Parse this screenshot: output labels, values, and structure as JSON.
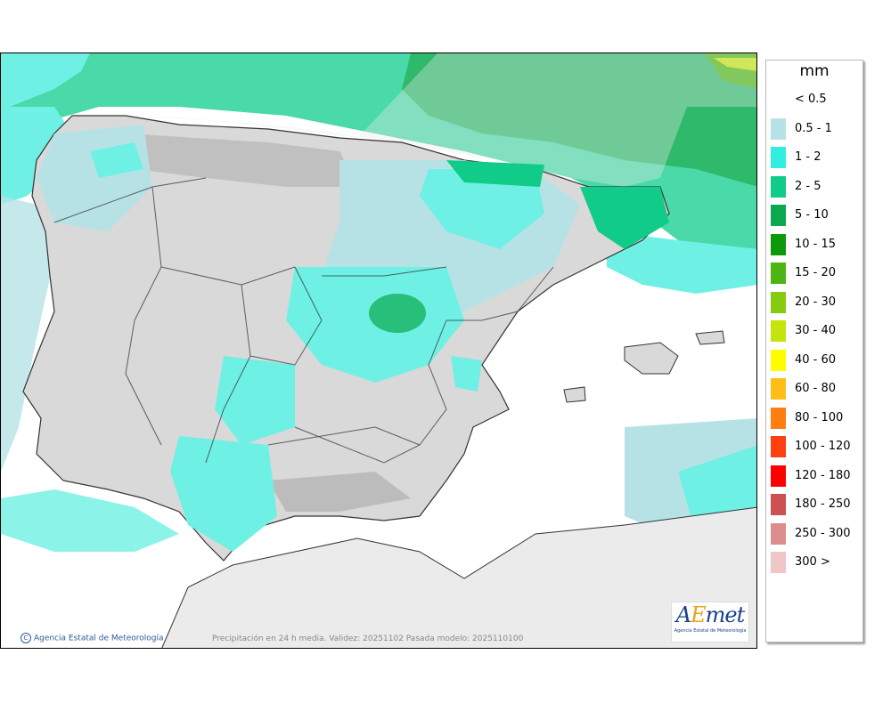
{
  "legend": {
    "title": "mm",
    "items": [
      {
        "label": "< 0.5",
        "color": "#ffffff"
      },
      {
        "label": "0.5 - 1",
        "color": "#b7e2e5"
      },
      {
        "label": "1 - 2",
        "color": "#30eee0"
      },
      {
        "label": "2 - 5",
        "color": "#10cc88"
      },
      {
        "label": "5 - 10",
        "color": "#0aa94e"
      },
      {
        "label": "10 - 15",
        "color": "#0a9a0a"
      },
      {
        "label": "15 - 20",
        "color": "#4cb511"
      },
      {
        "label": "20 - 30",
        "color": "#86cc0e"
      },
      {
        "label": "30 - 40",
        "color": "#c4e40c"
      },
      {
        "label": "40 - 60",
        "color": "#fefe00"
      },
      {
        "label": "60 - 80",
        "color": "#fdbe17"
      },
      {
        "label": "80 - 100",
        "color": "#fe7f0f"
      },
      {
        "label": "100 - 120",
        "color": "#fe3f10"
      },
      {
        "label": "120 - 180",
        "color": "#fe0000"
      },
      {
        "label": "180 - 250",
        "color": "#cf5050"
      },
      {
        "label": "250 - 300",
        "color": "#dc8d8d"
      },
      {
        "label": "300 >",
        "color": "#efc7c7"
      }
    ]
  },
  "map": {
    "copyright": "Agencia Estatal de Meteorología",
    "caption": "Precipitación en 24 h media. Validez: 20251102 Pasada modelo: 2025110100",
    "logo_text": "AEmet",
    "logo_subtext": "Agencia Estatal de Meteorología",
    "copyright_icon": "copyright-icon"
  }
}
